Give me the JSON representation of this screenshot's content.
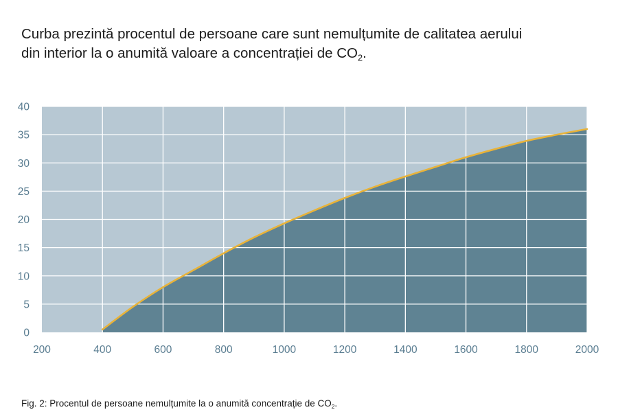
{
  "heading": {
    "line1": "Curba prezintă procentul de persoane care sunt nemulțumite de calitatea aerului",
    "line2_main": "din interior la o anumită valoare a concentrației de CO",
    "line2_sub": "2",
    "line2_end": "."
  },
  "caption": {
    "main": "Fig. 2: Procentul de persoane nemulțumite la o anumită concentrație de CO",
    "sub": "2",
    "end": "."
  },
  "colors": {
    "plot_background": "#b7c8d3",
    "area_fill": "#5f8393",
    "curve": "#e8b33a",
    "grid": "#ffffff",
    "tick_text": "#5a7d91"
  },
  "chart_data": {
    "type": "area",
    "title": "",
    "xlabel": "",
    "ylabel": "",
    "xlim": [
      200,
      2000
    ],
    "ylim": [
      0,
      40
    ],
    "x_ticks": [
      200,
      400,
      600,
      800,
      1000,
      1200,
      1400,
      1600,
      1800,
      2000
    ],
    "y_ticks": [
      0,
      5,
      10,
      15,
      20,
      25,
      30,
      35,
      40
    ],
    "grid": true,
    "legend": "none",
    "series": [
      {
        "x": [
          400,
          500,
          600,
          700,
          800,
          900,
          1000,
          1100,
          1200,
          1300,
          1400,
          1500,
          1600,
          1700,
          1800,
          1900,
          2000
        ],
        "y": [
          0.5,
          4.5,
          8.0,
          11.0,
          14.0,
          16.8,
          19.3,
          21.6,
          23.8,
          25.8,
          27.6,
          29.3,
          31.0,
          32.5,
          33.9,
          35.0,
          36.0
        ]
      }
    ]
  }
}
